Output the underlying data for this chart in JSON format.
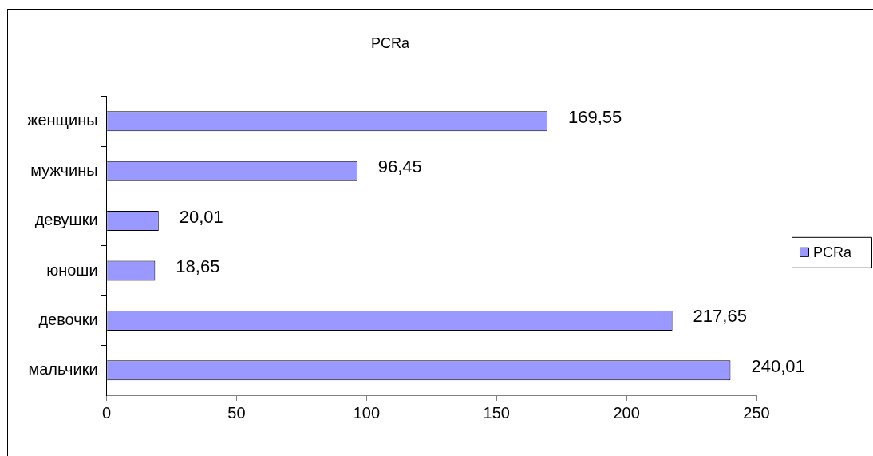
{
  "chart_data": {
    "type": "bar",
    "orientation": "horizontal",
    "title": "PCRa",
    "categories": [
      "женщины",
      "мужчины",
      "девушки",
      "юноши",
      "девочки",
      "мальчики"
    ],
    "series": [
      {
        "name": "PCRa",
        "color": "#9999ff",
        "values": [
          169.55,
          96.45,
          20.01,
          18.65,
          217.65,
          240.01
        ],
        "value_labels": [
          "169,55",
          "96,45",
          "20,01",
          "18,65",
          "217,65",
          "240,01"
        ]
      }
    ],
    "xlim": [
      0,
      250
    ],
    "xticks": [
      0,
      50,
      100,
      150,
      200,
      250
    ],
    "grid": false,
    "legend": "right"
  }
}
